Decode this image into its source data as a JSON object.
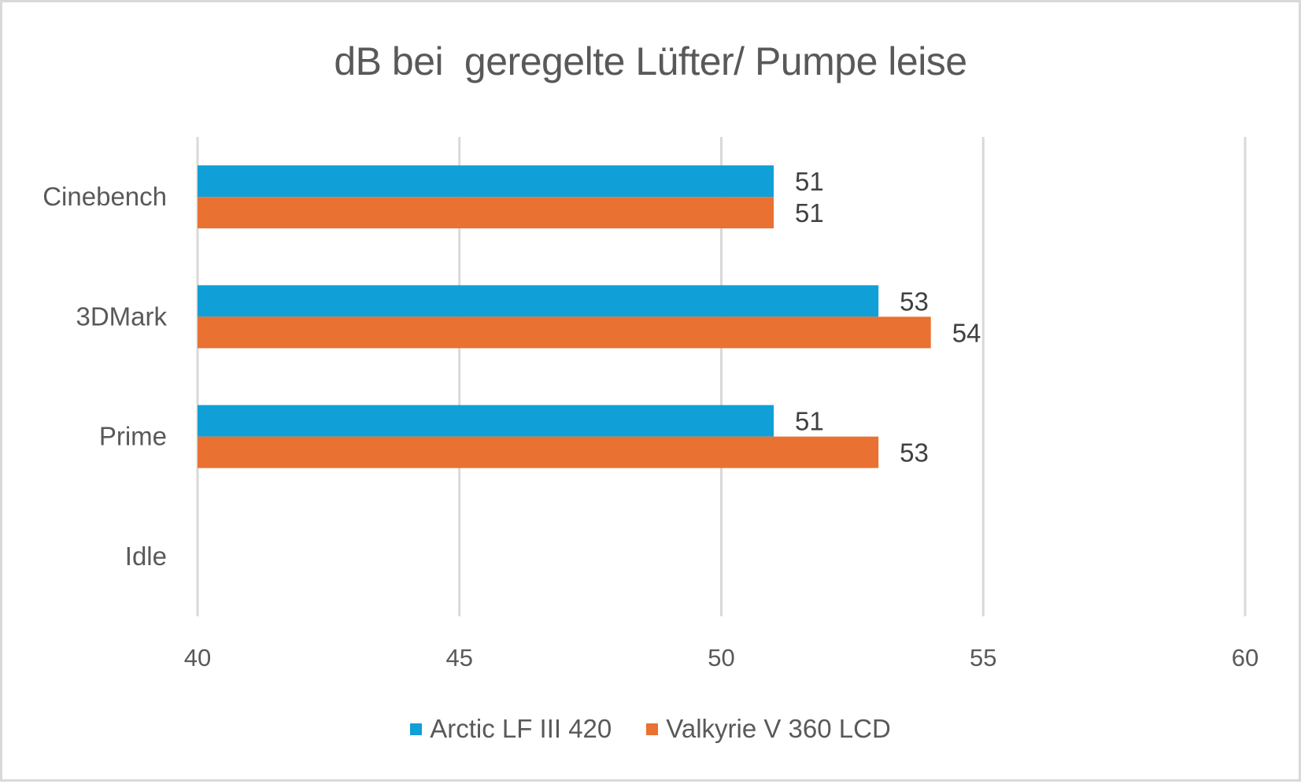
{
  "chart_data": {
    "type": "bar",
    "orientation": "horizontal",
    "title": "dB bei  geregelte Lüfter/ Pumpe leise",
    "xlabel": "",
    "ylabel": "",
    "categories": [
      "Cinebench",
      "3DMark",
      "Prime",
      "Idle"
    ],
    "series": [
      {
        "name": "Arctic LF III 420",
        "color": "#109fd6",
        "values": [
          51,
          53,
          51,
          null
        ]
      },
      {
        "name": "Valkyrie V 360 LCD",
        "color": "#e97132",
        "values": [
          51,
          54,
          53,
          null
        ]
      }
    ],
    "xlim": [
      40,
      60
    ],
    "xticks": [
      40,
      45,
      50,
      55,
      60
    ],
    "xtick_labels": [
      "40",
      "45",
      "50",
      "55",
      "60"
    ],
    "grid": true,
    "data_labels": true,
    "legend": "bottom"
  }
}
